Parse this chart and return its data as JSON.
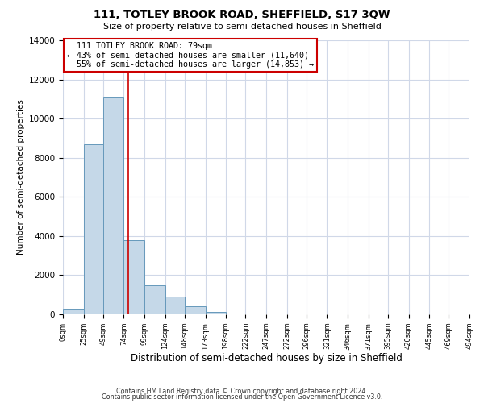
{
  "title": "111, TOTLEY BROOK ROAD, SHEFFIELD, S17 3QW",
  "subtitle": "Size of property relative to semi-detached houses in Sheffield",
  "xlabel": "Distribution of semi-detached houses by size in Sheffield",
  "ylabel": "Number of semi-detached properties",
  "bin_edges": [
    0,
    25,
    49,
    74,
    99,
    124,
    148,
    173,
    198,
    222,
    247,
    272,
    296,
    321,
    346,
    371,
    395,
    420,
    445,
    469,
    494
  ],
  "bar_heights": [
    300,
    8700,
    11100,
    3800,
    1500,
    900,
    400,
    130,
    60,
    0,
    0,
    0,
    0,
    0,
    0,
    0,
    0,
    0,
    0,
    0
  ],
  "tick_labels": [
    "0sqm",
    "25sqm",
    "49sqm",
    "74sqm",
    "99sqm",
    "124sqm",
    "148sqm",
    "173sqm",
    "198sqm",
    "222sqm",
    "247sqm",
    "272sqm",
    "296sqm",
    "321sqm",
    "346sqm",
    "371sqm",
    "395sqm",
    "420sqm",
    "445sqm",
    "469sqm",
    "494sqm"
  ],
  "bar_color": "#c5d8e8",
  "bar_edge_color": "#6699bb",
  "property_size": 79,
  "property_label": "111 TOTLEY BROOK ROAD: 79sqm",
  "pct_smaller": 43,
  "count_smaller": 11640,
  "pct_larger": 55,
  "count_larger": 14853,
  "vline_color": "#cc0000",
  "annotation_box_edge_color": "#cc0000",
  "ylim": [
    0,
    14000
  ],
  "yticks": [
    0,
    2000,
    4000,
    6000,
    8000,
    10000,
    12000,
    14000
  ],
  "footer_line1": "Contains HM Land Registry data © Crown copyright and database right 2024.",
  "footer_line2": "Contains public sector information licensed under the Open Government Licence v3.0.",
  "background_color": "#ffffff",
  "grid_color": "#d0d8e8"
}
